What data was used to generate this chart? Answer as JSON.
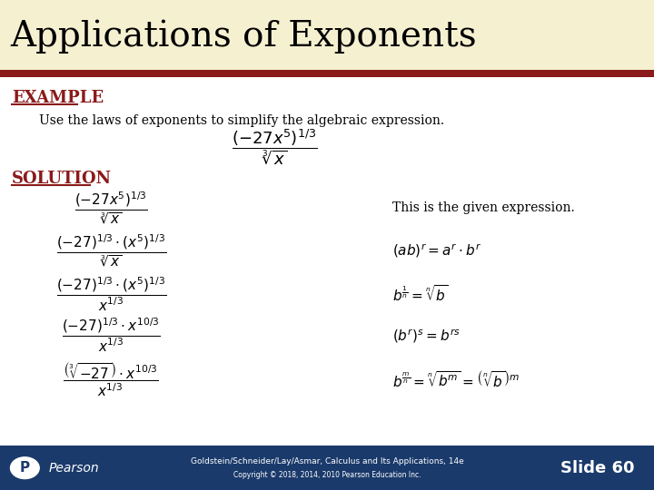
{
  "title": "Applications of Exponents",
  "title_bg": "#f5f0d0",
  "title_color": "#000000",
  "title_fontsize": 28,
  "red_bar_color": "#8b1a1a",
  "body_bg": "#ffffff",
  "example_label": "EXAMPLE",
  "example_color": "#8b1a1a",
  "solution_label": "SOLUTION",
  "solution_color": "#8b1a1a",
  "instruction": "Use the laws of exponents to simplify the algebraic expression.",
  "footer_bg": "#1a3a6b",
  "footer_line1": "Goldstein/Schneider/Lay/Asmar, Calculus and Its Applications, 14e",
  "footer_line2": "Copyright © 2018, 2014, 2010 Pearson Education Inc.",
  "footer_slide": "Slide 60",
  "footer_color": "#ffffff"
}
